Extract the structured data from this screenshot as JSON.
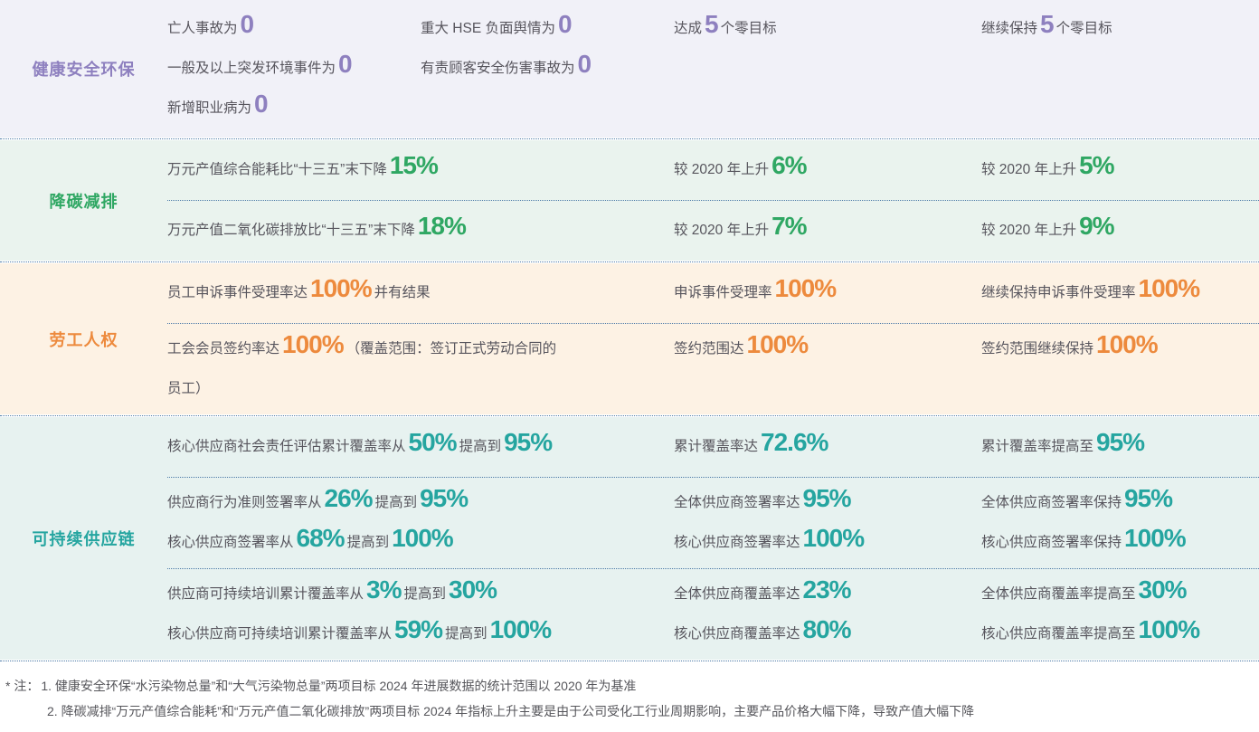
{
  "table": {
    "text_color": "#57555d",
    "divider_color": "#4d7ba8",
    "sections": [
      {
        "id": "health-safety-environment",
        "label": "健康安全环保",
        "accent": "#8e80bf",
        "bg": "#f1f1f8",
        "rows": [
          {
            "targets": [
              [
                {
                  "t": "亡人事故为"
                },
                {
                  "n": "0"
                }
              ],
              [
                {
                  "t": "重大 HSE 负面舆情为"
                },
                {
                  "n": "0"
                }
              ],
              [
                {
                  "t": "一般及以上突发环境事件为"
                },
                {
                  "n": "0"
                }
              ],
              [
                {
                  "t": "有责顾客安全伤害事故为"
                },
                {
                  "n": "0"
                }
              ],
              [
                {
                  "t": "新增职业病为"
                },
                {
                  "n": "0"
                }
              ]
            ],
            "progress": [
              [
                {
                  "t": "达成"
                },
                {
                  "n": "5"
                },
                {
                  "t": "个零目标"
                }
              ]
            ],
            "future": [
              [
                {
                  "t": "继续保持"
                },
                {
                  "n": "5"
                },
                {
                  "t": "个零目标"
                }
              ]
            ]
          }
        ]
      },
      {
        "id": "carbon-reduction",
        "label": "降碳减排",
        "accent": "#2fa763",
        "bg": "#eaf3ee",
        "rows": [
          {
            "targets": [
              [
                {
                  "t": "万元产值综合能耗比“十三五”末下降"
                },
                {
                  "n": "15%"
                }
              ]
            ],
            "progress": [
              [
                {
                  "t": "较 2020 年上升"
                },
                {
                  "n": "6%"
                }
              ]
            ],
            "future": [
              [
                {
                  "t": "较 2020 年上升"
                },
                {
                  "n": "5%"
                }
              ]
            ]
          },
          {
            "targets": [
              [
                {
                  "t": "万元产值二氧化碳排放比“十三五”末下降"
                },
                {
                  "n": "18%"
                }
              ]
            ],
            "progress": [
              [
                {
                  "t": "较 2020 年上升"
                },
                {
                  "n": "7%"
                }
              ]
            ],
            "future": [
              [
                {
                  "t": "较 2020 年上升"
                },
                {
                  "n": "9%"
                }
              ]
            ]
          }
        ]
      },
      {
        "id": "labor-rights",
        "label": "劳工人权",
        "accent": "#ed8a3d",
        "bg": "#fdf2e4",
        "rows": [
          {
            "targets": [
              [
                {
                  "t": "员工申诉事件受理率达"
                },
                {
                  "n": "100%"
                },
                {
                  "t": "并有结果"
                }
              ]
            ],
            "progress": [
              [
                {
                  "t": "申诉事件受理率"
                },
                {
                  "n": "100%"
                }
              ]
            ],
            "future": [
              [
                {
                  "t": "继续保持申诉事件受理率"
                },
                {
                  "n": "100%"
                }
              ]
            ]
          },
          {
            "targets": [
              [
                {
                  "t": "工会会员签约率达"
                },
                {
                  "n": "100%"
                },
                {
                  "t": "（覆盖范围：签订正式劳动合同的"
                }
              ],
              [
                {
                  "t": "员工）"
                }
              ]
            ],
            "progress": [
              [
                {
                  "t": "签约范围达"
                },
                {
                  "n": "100%"
                }
              ]
            ],
            "future": [
              [
                {
                  "t": "签约范围继续保持"
                },
                {
                  "n": "100%"
                }
              ]
            ]
          }
        ]
      },
      {
        "id": "sustainable-supply-chain",
        "label": "可持续供应链",
        "accent": "#25a5a0",
        "bg": "#e7f2f0",
        "rows": [
          {
            "targets": [
              [
                {
                  "t": "核心供应商社会责任评估累计覆盖率从"
                },
                {
                  "n": "50%"
                },
                {
                  "t": "提高到"
                },
                {
                  "n": "95%"
                }
              ]
            ],
            "progress": [
              [
                {
                  "t": "累计覆盖率达"
                },
                {
                  "n": "72.6%"
                }
              ]
            ],
            "future": [
              [
                {
                  "t": "累计覆盖率提高至"
                },
                {
                  "n": "95%"
                }
              ]
            ]
          },
          {
            "targets": [
              [
                {
                  "t": "供应商行为准则签署率从"
                },
                {
                  "n": "26%"
                },
                {
                  "t": "提高到"
                },
                {
                  "n": "95%"
                }
              ],
              [
                {
                  "t": "核心供应商签署率从"
                },
                {
                  "n": "68%"
                },
                {
                  "t": "提高到"
                },
                {
                  "n": "100%"
                }
              ]
            ],
            "progress": [
              [
                {
                  "t": "全体供应商签署率达"
                },
                {
                  "n": "95%"
                }
              ],
              [
                {
                  "t": "核心供应商签署率达"
                },
                {
                  "n": "100%"
                }
              ]
            ],
            "future": [
              [
                {
                  "t": "全体供应商签署率保持"
                },
                {
                  "n": "95%"
                }
              ],
              [
                {
                  "t": "核心供应商签署率保持"
                },
                {
                  "n": "100%"
                }
              ]
            ]
          },
          {
            "targets": [
              [
                {
                  "t": "供应商可持续培训累计覆盖率从"
                },
                {
                  "n": "3%"
                },
                {
                  "t": "提高到"
                },
                {
                  "n": "30%"
                }
              ],
              [
                {
                  "t": "核心供应商可持续培训累计覆盖率从"
                },
                {
                  "n": "59%"
                },
                {
                  "t": "提高到"
                },
                {
                  "n": "100%"
                }
              ]
            ],
            "progress": [
              [
                {
                  "t": "全体供应商覆盖率达"
                },
                {
                  "n": "23%"
                }
              ],
              [
                {
                  "t": "核心供应商覆盖率达"
                },
                {
                  "n": "80%"
                }
              ]
            ],
            "future": [
              [
                {
                  "t": "全体供应商覆盖率提高至"
                },
                {
                  "n": "30%"
                }
              ],
              [
                {
                  "t": "核心供应商覆盖率提高至"
                },
                {
                  "n": "100%"
                }
              ]
            ]
          }
        ]
      }
    ]
  },
  "notes": {
    "marker": "* 注：",
    "items": [
      "1. 健康安全环保“水污染物总量”和“大气污染物总量”两项目标 2024 年进展数据的统计范围以 2020 年为基准",
      "2. 降碳减排“万元产值综合能耗”和“万元产值二氧化碳排放”两项目标 2024 年指标上升主要是由于公司受化工行业周期影响，主要产品价格大幅下降，导致产值大幅下降"
    ]
  }
}
